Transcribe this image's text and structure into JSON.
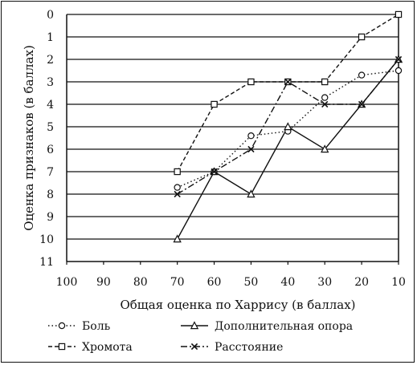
{
  "chart_data": {
    "type": "line",
    "title": "",
    "xlabel": "Общая оценка по Харрису (в баллах)",
    "ylabel": "Оценка признаков (в баллах)",
    "x_ticks": [
      100,
      90,
      80,
      70,
      60,
      50,
      40,
      30,
      20,
      10
    ],
    "y_ticks": [
      0,
      1,
      2,
      3,
      4,
      5,
      6,
      7,
      8,
      9,
      10,
      11
    ],
    "xlim": [
      100,
      10
    ],
    "ylim": [
      11,
      0
    ],
    "x_reversed": true,
    "y_inverted": true,
    "grid": "horizontal",
    "legend_position": "bottom",
    "series": [
      {
        "name": "Боль",
        "marker": "circle",
        "dash": "dotted",
        "x": [
          70,
          60,
          50,
          40,
          30,
          20,
          10
        ],
        "y": [
          7.7,
          7.0,
          5.4,
          5.2,
          3.7,
          2.7,
          2.5
        ]
      },
      {
        "name": "Дополнительная опора",
        "marker": "triangle",
        "dash": "solid",
        "x": [
          70,
          60,
          50,
          40,
          30,
          20,
          10
        ],
        "y": [
          10.0,
          7.0,
          8.0,
          5.0,
          6.0,
          4.0,
          2.0
        ]
      },
      {
        "name": "Хромота",
        "marker": "square",
        "dash": "dashed",
        "x": [
          70,
          60,
          50,
          40,
          30,
          20,
          10
        ],
        "y": [
          7.0,
          4.0,
          3.0,
          3.0,
          3.0,
          1.0,
          0.0
        ]
      },
      {
        "name": "Расстояние",
        "marker": "cross",
        "dash": "dashdot",
        "x": [
          70,
          60,
          50,
          40,
          30,
          20,
          10
        ],
        "y": [
          8.0,
          7.0,
          6.0,
          3.0,
          4.0,
          4.0,
          2.0
        ]
      }
    ]
  }
}
